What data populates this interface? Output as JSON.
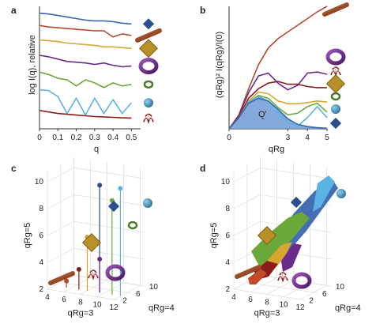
{
  "panels": {
    "a": "a",
    "b": "b",
    "c": "c",
    "d": "d"
  },
  "chart_data": [
    {
      "panel": "a",
      "type": "line",
      "xlabel": "q",
      "ylabel": "log I(q), relative",
      "xticks": [
        "0",
        "0.1",
        "0.2",
        "0.3",
        "0.4",
        "0.5"
      ],
      "xlim": [
        0,
        0.55
      ],
      "ylim": [
        0,
        8
      ],
      "x": [
        0,
        0.05,
        0.1,
        0.15,
        0.2,
        0.25,
        0.3,
        0.35,
        0.4,
        0.45,
        0.5
      ],
      "series": [
        {
          "color": "#3b66b0",
          "values": [
            7.55,
            7.5,
            7.4,
            7.3,
            7.2,
            7.1,
            7.05,
            7.05,
            7.0,
            6.9,
            6.85
          ]
        },
        {
          "color": "#b34a2e",
          "values": [
            6.75,
            6.65,
            6.6,
            6.55,
            6.5,
            6.45,
            6.4,
            6.4,
            6.0,
            6.2,
            6.1
          ]
        },
        {
          "color": "#d8a530",
          "values": [
            5.8,
            5.75,
            5.7,
            5.6,
            5.55,
            5.5,
            5.45,
            5.35,
            5.35,
            5.3,
            5.25
          ]
        },
        {
          "color": "#6a2a8a",
          "values": [
            4.8,
            4.7,
            4.55,
            4.4,
            4.35,
            4.3,
            4.2,
            4.3,
            4.15,
            4.05,
            4.1
          ]
        },
        {
          "color": "#6aa83a",
          "values": [
            3.7,
            3.55,
            3.3,
            3.2,
            2.8,
            3.2,
            3.0,
            2.7,
            3.0,
            2.8,
            2.9
          ]
        },
        {
          "color": "#5ab3e3",
          "values": [
            2.55,
            2.5,
            2.1,
            1.0,
            2.0,
            0.9,
            2.0,
            1.0,
            1.9,
            1.0,
            1.7
          ]
        },
        {
          "color": "#8a1c1c",
          "values": [
            1.2,
            1.1,
            1.0,
            0.95,
            0.9,
            0.85,
            0.8,
            0.78,
            0.75,
            0.72,
            0.7
          ]
        }
      ],
      "icons": [
        "blue-diamond-icon",
        "brown-rod-icon",
        "gold-diamond-icon",
        "purple-torus-icon",
        "green-ring-icon",
        "blue-sphere-icon",
        "red-coil-icon"
      ]
    },
    {
      "panel": "b",
      "type": "line",
      "xlabel": "qRg",
      "ylabel": "(qRg)² I(qRg)/I(0)",
      "xticks": [
        "0",
        "3",
        "4",
        "5"
      ],
      "xlim": [
        0,
        5
      ],
      "ylim": [
        0,
        2.2
      ],
      "annotation": "Q'",
      "x": [
        0,
        0.5,
        1,
        1.5,
        2,
        2.5,
        3,
        3.5,
        4,
        4.5,
        5
      ],
      "series": [
        {
          "color": "#b34a2e",
          "values": [
            0,
            0.25,
            0.72,
            1.15,
            1.45,
            1.62,
            1.74,
            1.86,
            1.98,
            2.1,
            2.2
          ]
        },
        {
          "color": "#6a2a8a",
          "values": [
            0,
            0.24,
            0.65,
            0.95,
            1.0,
            0.82,
            0.7,
            0.78,
            1.0,
            1.02,
            0.98
          ]
        },
        {
          "color": "#8a1c1c",
          "values": [
            0,
            0.22,
            0.55,
            0.72,
            0.82,
            0.85,
            0.8,
            0.8,
            0.76,
            0.74,
            0.74
          ]
        },
        {
          "color": "#d8a530",
          "values": [
            0,
            0.2,
            0.5,
            0.66,
            0.63,
            0.5,
            0.45,
            0.45,
            0.47,
            0.5,
            0.48
          ]
        },
        {
          "color": "#6aa83a",
          "values": [
            0,
            0.2,
            0.48,
            0.6,
            0.55,
            0.38,
            0.25,
            0.28,
            0.4,
            0.46,
            0.3
          ]
        },
        {
          "color": "#5ab3e3",
          "values": [
            0,
            0.2,
            0.48,
            0.58,
            0.5,
            0.3,
            0.12,
            0.05,
            0.2,
            0.4,
            0.2
          ]
        },
        {
          "color": "#3b66b0",
          "values": [
            0,
            0.2,
            0.46,
            0.55,
            0.5,
            0.35,
            0.18,
            0.08,
            0.04,
            0.02,
            0.01
          ]
        }
      ],
      "icons": [
        "brown-rod-icon",
        "purple-torus-icon",
        "red-coil-icon",
        "gold-diamond-icon",
        "green-ring-icon",
        "blue-sphere-icon",
        "blue-diamond-icon"
      ]
    },
    {
      "panel": "c",
      "type": "scatter",
      "xlabel": "qRg=3",
      "ylabel": "qRg=5",
      "zlabel": "qRg=4",
      "xticks": [
        "4",
        "6",
        "8",
        "10",
        "12"
      ],
      "yticks": [
        "2",
        "4",
        "6",
        "8",
        "10"
      ],
      "zticks": [
        "2",
        "6",
        "10"
      ],
      "points": [
        {
          "label": "blue-diamond",
          "color": "#2a4f8a",
          "x": 9.5,
          "z": 4,
          "y": 10
        },
        {
          "label": "blue-sphere",
          "color": "#5ab3e3",
          "x": 12,
          "z": 4,
          "y": 10
        },
        {
          "label": "green-ring",
          "color": "#6aa83a",
          "x": 11,
          "z": 4,
          "y": 9
        },
        {
          "label": "gold-diamond",
          "color": "#d8a530",
          "x": 8,
          "z": 4,
          "y": 6
        },
        {
          "label": "purple-torus",
          "color": "#6a2a8a",
          "x": 9.5,
          "z": 4,
          "y": 4.5
        },
        {
          "label": "red-coil",
          "color": "#8a1c1c",
          "x": 7,
          "z": 4,
          "y": 3.5
        },
        {
          "label": "brown-rod",
          "color": "#b34a2e",
          "x": 5.5,
          "z": 4,
          "y": 2.5
        }
      ]
    },
    {
      "panel": "d",
      "type": "scatter",
      "xlabel": "qRg=3",
      "ylabel": "qRg=5",
      "zlabel": "qRg=4",
      "xticks": [
        "4",
        "6",
        "8",
        "10",
        "12"
      ],
      "yticks": [
        "2",
        "4",
        "6",
        "8",
        "10"
      ],
      "zticks": [
        "2",
        "6",
        "10"
      ],
      "clusters": [
        {
          "label": "blue-diamond",
          "color": "#3b66b0"
        },
        {
          "label": "blue-sphere",
          "color": "#5ab3e3"
        },
        {
          "label": "green-ring",
          "color": "#6aa83a"
        },
        {
          "label": "gold-diamond",
          "color": "#d8a530"
        },
        {
          "label": "purple-torus",
          "color": "#6a2a8a"
        },
        {
          "label": "red-coil",
          "color": "#8a1c1c"
        },
        {
          "label": "brown-rod",
          "color": "#c2492a"
        }
      ]
    }
  ]
}
